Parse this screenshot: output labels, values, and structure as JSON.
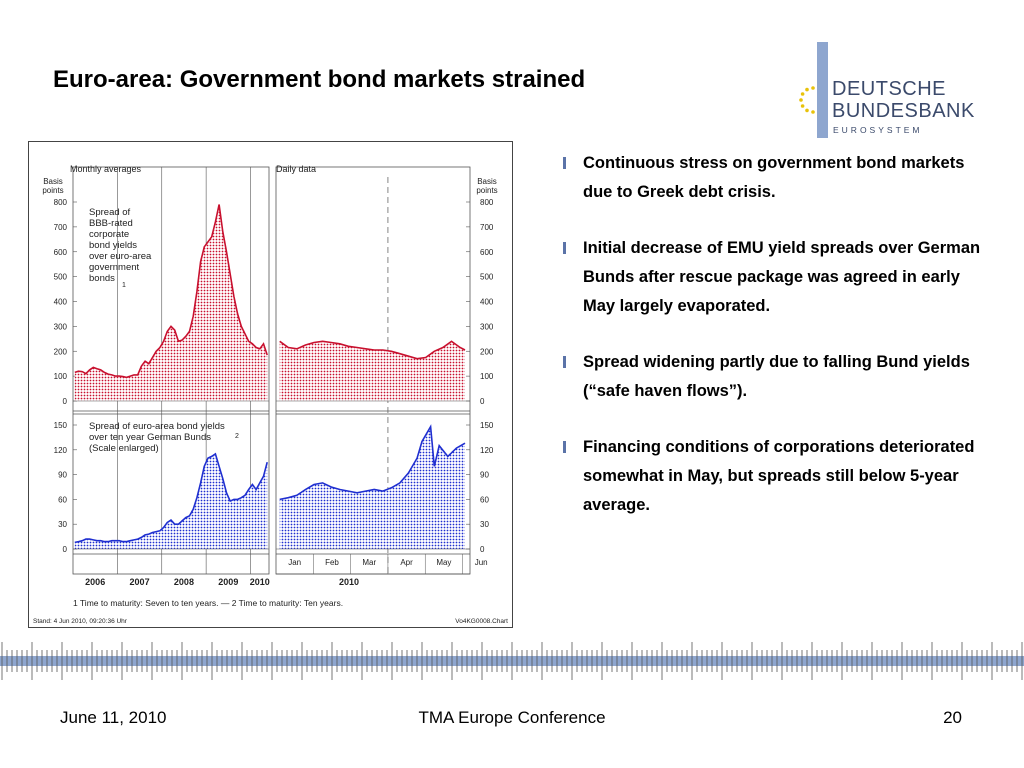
{
  "slide": {
    "title": "Euro-area: Government bond markets strained"
  },
  "logo": {
    "line1": "DEUTSCHE",
    "line2": "BUNDESBANK",
    "line3": "EUROSYSTEM"
  },
  "bullets": [
    "Continuous stress on government bond markets due to Greek debt crisis.",
    "Initial decrease of EMU yield spreads over German Bunds after rescue package was agreed in early May largely evaporated.",
    "Spread widening partly due to falling Bund yields (“safe haven flows”).",
    "Financing conditions of corporations deteriorated somewhat in May, but spreads still below 5-year average."
  ],
  "footer": {
    "date": "June 11, 2010",
    "center": "TMA Europe Conference",
    "page": "20"
  },
  "colors": {
    "red_series": "#c8102e",
    "blue_series": "#1f2fd0",
    "bullet_accent": "#5b73a8",
    "ruler_blue": "#8ea6cf"
  },
  "chart_data": [
    {
      "type": "area",
      "panel": "Monthly averages — upper",
      "title": "Monthly averages",
      "ylabel": "Basis points",
      "ylim": [
        0,
        800
      ],
      "yticks": [
        0,
        100,
        200,
        300,
        400,
        500,
        600,
        700,
        800
      ],
      "x_labels": [
        "2006",
        "2007",
        "2008",
        "2009",
        "2010"
      ],
      "series": [
        {
          "name": "Spread of BBB-rated corporate bond yields over euro-area government bonds",
          "footnote_marker": "1",
          "x": [
            "2006-01",
            "2006-02",
            "2006-03",
            "2006-04",
            "2006-05",
            "2006-06",
            "2006-07",
            "2006-08",
            "2006-09",
            "2006-10",
            "2006-11",
            "2006-12",
            "2007-01",
            "2007-02",
            "2007-03",
            "2007-04",
            "2007-05",
            "2007-06",
            "2007-07",
            "2007-08",
            "2007-09",
            "2007-10",
            "2007-11",
            "2007-12",
            "2008-01",
            "2008-02",
            "2008-03",
            "2008-04",
            "2008-05",
            "2008-06",
            "2008-07",
            "2008-08",
            "2008-09",
            "2008-10",
            "2008-11",
            "2008-12",
            "2009-01",
            "2009-02",
            "2009-03",
            "2009-04",
            "2009-05",
            "2009-06",
            "2009-07",
            "2009-08",
            "2009-09",
            "2009-10",
            "2009-11",
            "2009-12",
            "2010-01",
            "2010-02",
            "2010-03",
            "2010-04",
            "2010-05"
          ],
          "values": [
            115,
            120,
            118,
            110,
            125,
            135,
            130,
            125,
            115,
            108,
            105,
            100,
            100,
            98,
            95,
            100,
            105,
            105,
            140,
            160,
            150,
            175,
            200,
            215,
            240,
            280,
            300,
            285,
            240,
            245,
            260,
            280,
            340,
            440,
            560,
            620,
            640,
            660,
            720,
            790,
            680,
            600,
            510,
            420,
            350,
            300,
            270,
            240,
            230,
            215,
            210,
            230,
            185
          ]
        }
      ]
    },
    {
      "type": "area",
      "panel": "Monthly averages — lower",
      "title": "Spread of euro-area bond yields over ten year German Bunds (Scale enlarged)",
      "ylim": [
        0,
        150
      ],
      "yticks": [
        0,
        30,
        60,
        90,
        120,
        150
      ],
      "series": [
        {
          "name": "Spread of euro-area bond yields over ten year German Bunds",
          "footnote_marker": "2",
          "x": [
            "2006-01",
            "2006-02",
            "2006-03",
            "2006-04",
            "2006-05",
            "2006-06",
            "2006-07",
            "2006-08",
            "2006-09",
            "2006-10",
            "2006-11",
            "2006-12",
            "2007-01",
            "2007-02",
            "2007-03",
            "2007-04",
            "2007-05",
            "2007-06",
            "2007-07",
            "2007-08",
            "2007-09",
            "2007-10",
            "2007-11",
            "2007-12",
            "2008-01",
            "2008-02",
            "2008-03",
            "2008-04",
            "2008-05",
            "2008-06",
            "2008-07",
            "2008-08",
            "2008-09",
            "2008-10",
            "2008-11",
            "2008-12",
            "2009-01",
            "2009-02",
            "2009-03",
            "2009-04",
            "2009-05",
            "2009-06",
            "2009-07",
            "2009-08",
            "2009-09",
            "2009-10",
            "2009-11",
            "2009-12",
            "2010-01",
            "2010-02",
            "2010-03",
            "2010-04",
            "2010-05"
          ],
          "values": [
            8,
            9,
            10,
            12,
            12,
            11,
            10,
            10,
            9,
            9,
            10,
            10,
            10,
            9,
            9,
            10,
            11,
            12,
            14,
            17,
            18,
            20,
            21,
            22,
            26,
            32,
            35,
            30,
            30,
            34,
            38,
            40,
            48,
            62,
            80,
            100,
            110,
            112,
            115,
            100,
            85,
            68,
            58,
            60,
            60,
            62,
            65,
            72,
            78,
            72,
            80,
            88,
            105
          ]
        }
      ]
    },
    {
      "type": "area",
      "panel": "Daily data — upper",
      "title": "Daily data",
      "ylabel": "Basis points",
      "ylim": [
        0,
        800
      ],
      "yticks": [
        0,
        100,
        200,
        300,
        400,
        500,
        600,
        700,
        800
      ],
      "x_labels": [
        "Jan",
        "Feb",
        "Mar",
        "Apr",
        "May",
        "Jun"
      ],
      "year_label": "2010",
      "series": [
        {
          "name": "Spread of BBB-rated corporate bond yields over euro-area government bonds (daily)",
          "x": [
            "2010-01-04",
            "2010-01-11",
            "2010-01-18",
            "2010-01-25",
            "2010-02-01",
            "2010-02-08",
            "2010-02-15",
            "2010-02-22",
            "2010-03-01",
            "2010-03-08",
            "2010-03-15",
            "2010-03-22",
            "2010-03-29",
            "2010-04-05",
            "2010-04-12",
            "2010-04-19",
            "2010-04-26",
            "2010-05-03",
            "2010-05-10",
            "2010-05-17",
            "2010-05-24",
            "2010-05-31",
            "2010-06-04"
          ],
          "values": [
            240,
            215,
            210,
            225,
            235,
            240,
            235,
            230,
            220,
            215,
            210,
            205,
            205,
            200,
            190,
            180,
            170,
            175,
            200,
            215,
            240,
            215,
            205
          ]
        }
      ]
    },
    {
      "type": "area",
      "panel": "Daily data — lower",
      "ylim": [
        0,
        150
      ],
      "yticks": [
        0,
        30,
        60,
        90,
        120,
        150
      ],
      "series": [
        {
          "name": "Spread of euro-area bond yields over ten year German Bunds (daily)",
          "x": [
            "2010-01-04",
            "2010-01-11",
            "2010-01-18",
            "2010-01-25",
            "2010-02-01",
            "2010-02-08",
            "2010-02-15",
            "2010-02-22",
            "2010-03-01",
            "2010-03-08",
            "2010-03-15",
            "2010-03-22",
            "2010-03-29",
            "2010-04-05",
            "2010-04-12",
            "2010-04-19",
            "2010-04-26",
            "2010-04-30",
            "2010-05-07",
            "2010-05-10",
            "2010-05-14",
            "2010-05-21",
            "2010-05-28",
            "2010-06-04"
          ],
          "values": [
            60,
            62,
            65,
            72,
            78,
            80,
            75,
            72,
            70,
            68,
            70,
            72,
            70,
            74,
            80,
            92,
            110,
            130,
            148,
            100,
            125,
            112,
            122,
            128
          ]
        }
      ]
    }
  ],
  "chart_text": {
    "monthly_header": "Monthly averages",
    "daily_header": "Daily data",
    "axis_unit_line1": "Basis",
    "axis_unit_line2": "points",
    "upper_series_label": [
      "Spread of",
      "BBB-rated",
      "corporate",
      "bond yields",
      "over euro-area",
      "government",
      "bonds"
    ],
    "upper_footnote_marker": "1",
    "lower_series_label": [
      "Spread of euro-area bond yields",
      "over ten year German Bunds",
      "(Scale enlarged)"
    ],
    "lower_footnote_marker": "2",
    "years": [
      "2006",
      "2007",
      "2008",
      "2009",
      "2010"
    ],
    "months": [
      "Jan",
      "Feb",
      "Mar",
      "Apr",
      "May",
      "Jun"
    ],
    "daily_year": "2010",
    "footnote": "1 Time to maturity: Seven to ten years. — 2 Time to maturity: Ten years.",
    "stand": "Stand: 4 Jun 2010, 09:20:36 Uhr",
    "chart_id": "Vo4KG0008.Chart"
  }
}
